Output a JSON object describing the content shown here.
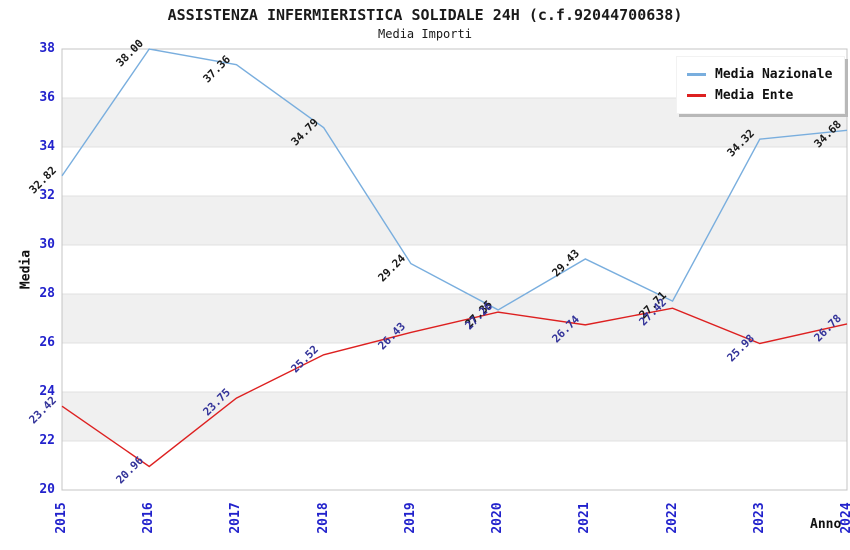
{
  "chart_data": {
    "type": "line",
    "title": "ASSISTENZA INFERMIERISTICA SOLIDALE 24H (c.f.92044700638)",
    "subtitle": "Media Importi",
    "xlabel": "Anno",
    "ylabel": "Media",
    "x": [
      "2015",
      "2016",
      "2017",
      "2018",
      "2019",
      "2020",
      "2021",
      "2022",
      "2023",
      "2024"
    ],
    "series": [
      {
        "name": "Media Nazionale",
        "color": "#79aede",
        "label_color": "#1a1a1a",
        "values": [
          32.82,
          38.0,
          37.36,
          34.79,
          29.24,
          27.35,
          29.43,
          27.71,
          34.32,
          34.68
        ]
      },
      {
        "name": "Media Ente",
        "color": "#dd2020",
        "label_color": "#333399",
        "values": [
          23.42,
          20.96,
          23.75,
          25.52,
          26.43,
          27.26,
          26.74,
          27.42,
          25.98,
          26.78
        ]
      }
    ],
    "ylim": [
      20,
      38
    ],
    "ytick_step": 2,
    "value_label_decimals": 2,
    "grid": "horizontal-bands",
    "legend_position": "top-right",
    "band_colors": [
      "#ffffff",
      "#f0f0f0"
    ],
    "axis_tick_color": "#2222cc",
    "gridline_color": "#e0e0e0",
    "plot_border_color": "#c4c4c4"
  }
}
